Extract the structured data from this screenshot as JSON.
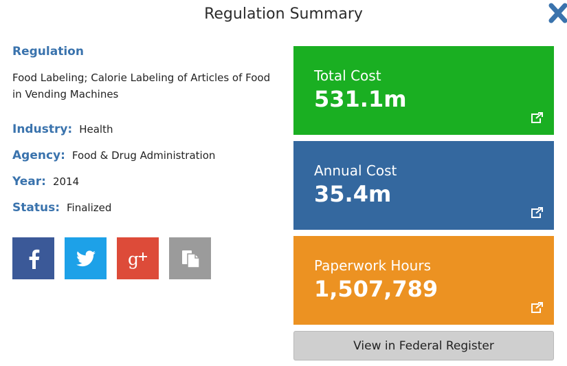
{
  "header": {
    "title": "Regulation Summary",
    "close_icon": "close-icon"
  },
  "regulation": {
    "heading": "Regulation",
    "name": "Food Labeling; Calorie Labeling of Articles of Food in Vending Machines"
  },
  "meta": {
    "industry_label": "Industry:",
    "industry": "Health",
    "agency_label": "Agency:",
    "agency": "Food & Drug Administration",
    "year_label": "Year:",
    "year": "2014",
    "status_label": "Status:",
    "status": "Finalized"
  },
  "share": {
    "icons": [
      "facebook-icon",
      "twitter-icon",
      "google-plus-icon",
      "copy-icon"
    ],
    "colors": {
      "facebook": "#3b5998",
      "twitter": "#1da1e8",
      "google_plus": "#dd4b39",
      "copy": "#9b9b9b"
    }
  },
  "cards": [
    {
      "label": "Total Cost",
      "value": "531.1m",
      "color": "#1aaf22",
      "icon": "external-link-icon"
    },
    {
      "label": "Annual Cost",
      "value": "35.4m",
      "color": "#34689f",
      "icon": "external-link-icon"
    },
    {
      "label": "Paperwork Hours",
      "value": "1,507,789",
      "color": "#ec9222",
      "icon": "external-link-icon"
    }
  ],
  "federal_register_button": "View in Federal Register"
}
